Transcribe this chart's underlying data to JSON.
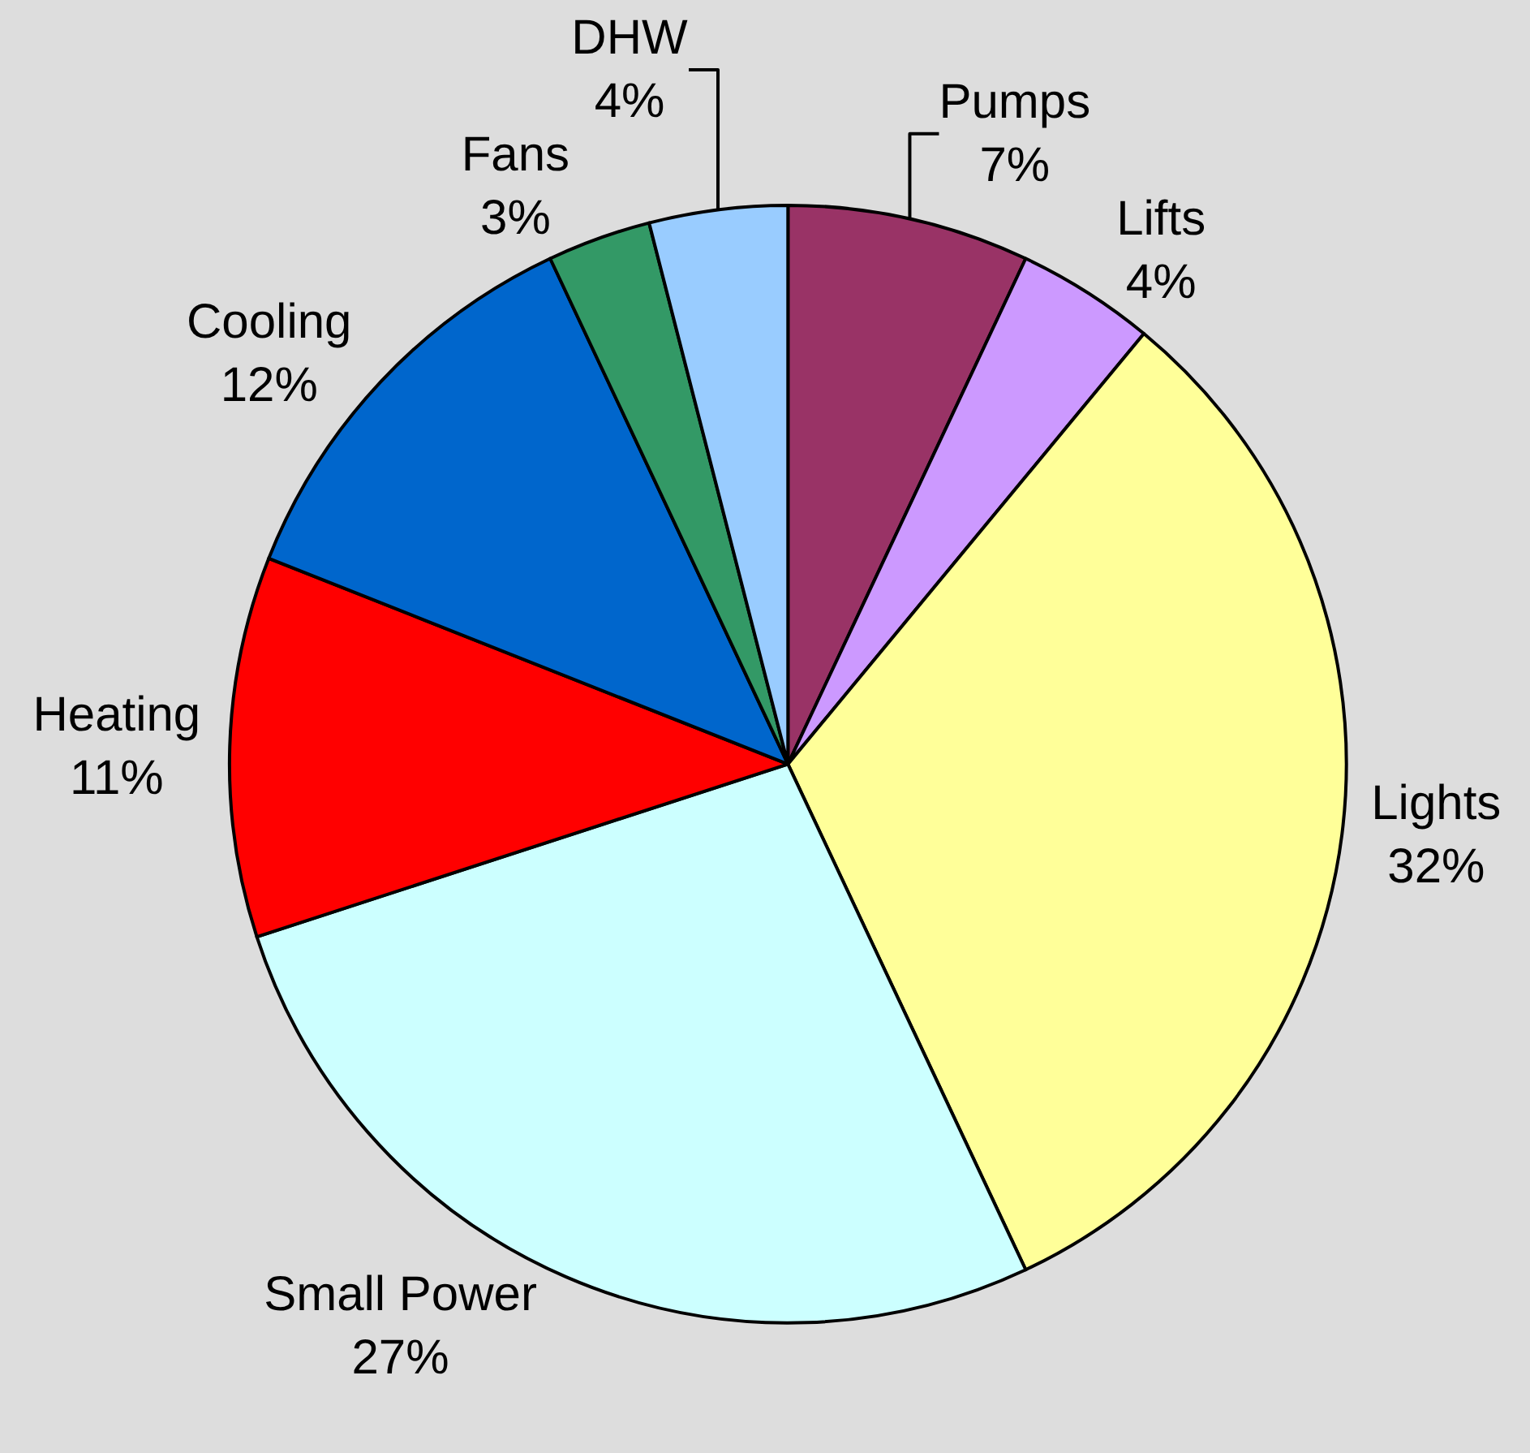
{
  "chart_data": {
    "type": "pie",
    "categories": [
      "Pumps",
      "Lifts",
      "Lights",
      "Small Power",
      "Heating",
      "Cooling",
      "Fans",
      "DHW"
    ],
    "values": [
      7,
      4,
      32,
      27,
      11,
      12,
      3,
      4
    ],
    "value_labels": [
      "7%",
      "4%",
      "32%",
      "27%",
      "11%",
      "12%",
      "3%",
      "4%"
    ],
    "colors": [
      "#993366",
      "#cc99ff",
      "#ffff99",
      "#ccffff",
      "#ff0000",
      "#0066cc",
      "#339966",
      "#99ccff"
    ],
    "legend": false
  }
}
